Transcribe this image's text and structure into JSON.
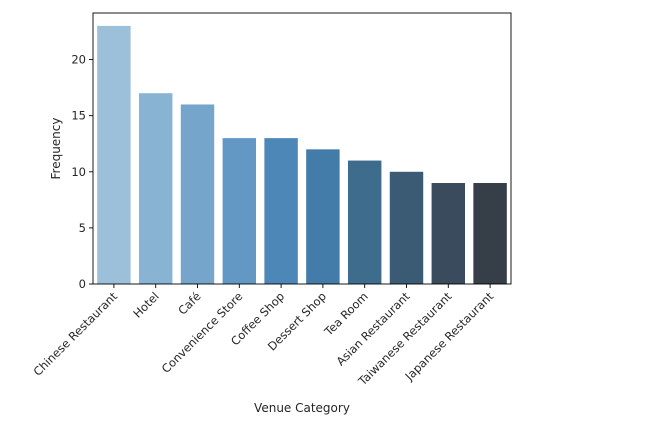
{
  "chart_data": {
    "type": "bar",
    "xlabel": "Venue Category",
    "ylabel": "Frequency",
    "categories": [
      "Chinese Restaurant",
      "Hotel",
      "Café",
      "Convenience Store",
      "Coffee Shop",
      "Dessert Shop",
      "Tea Room",
      "Asian Restaurant",
      "Taiwanese Restaurant",
      "Japanese Restaurant"
    ],
    "values": [
      23,
      17,
      16,
      13,
      13,
      12,
      11,
      10,
      9,
      9
    ],
    "ylim": [
      0,
      24.15
    ],
    "yticks": [
      0,
      5,
      10,
      15,
      20
    ],
    "ytick_labels": [
      "0",
      "5",
      "10",
      "15",
      "20"
    ],
    "grid": false,
    "legend": "none",
    "palette": "Blues_d",
    "colors": [
      "#9dc0da",
      "#88b3d3",
      "#75a5ca",
      "#6298c3",
      "#4d87b7",
      "#437ca8",
      "#3e6c8d",
      "#3b5b75",
      "#3a4b5d",
      "#363f47"
    ]
  }
}
